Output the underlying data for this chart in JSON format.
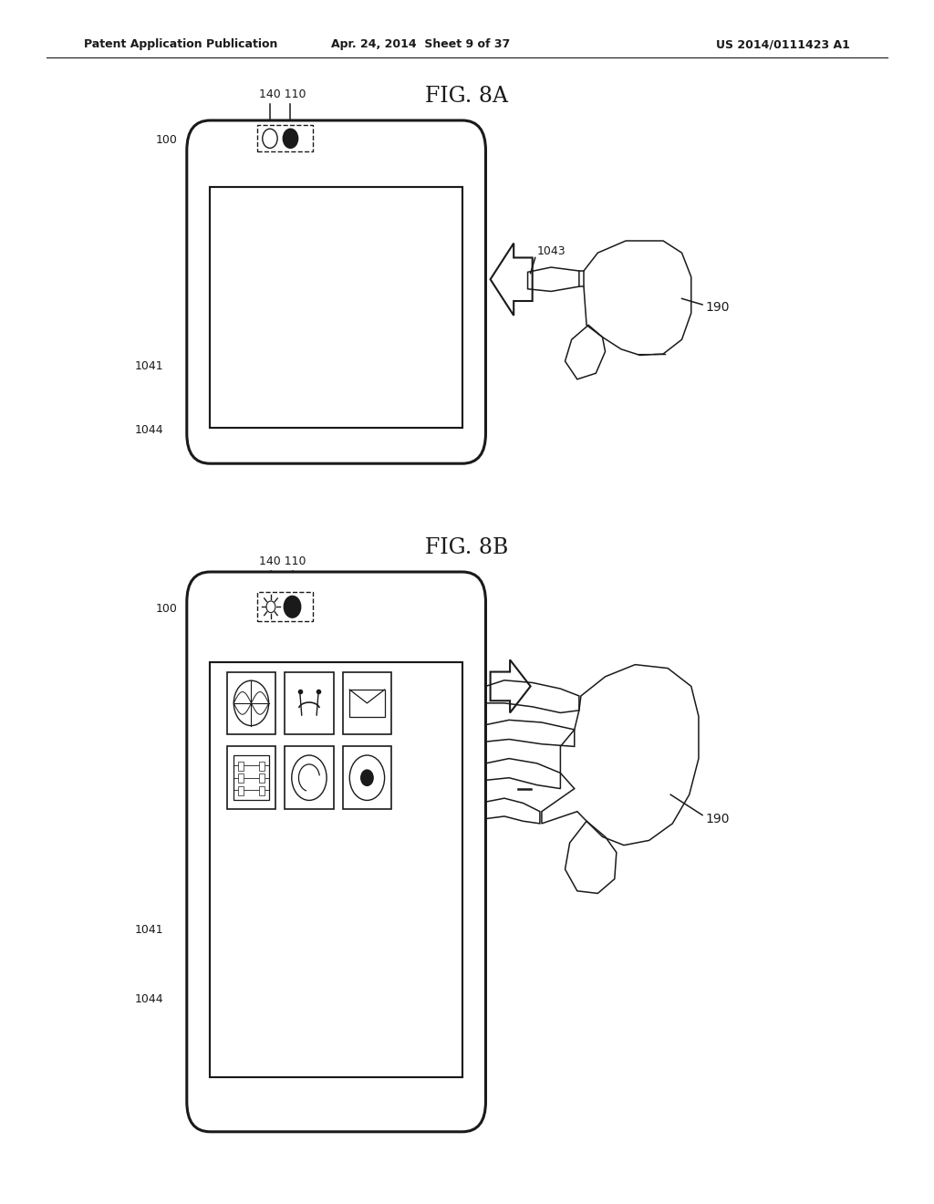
{
  "bg_color": "#ffffff",
  "line_color": "#1a1a1a",
  "header_left": "Patent Application Publication",
  "header_center": "Apr. 24, 2014  Sheet 9 of 37",
  "header_right": "US 2014/0111423 A1",
  "fig_8a_title": "FIG. 8A",
  "fig_8b_title": "FIG. 8B"
}
